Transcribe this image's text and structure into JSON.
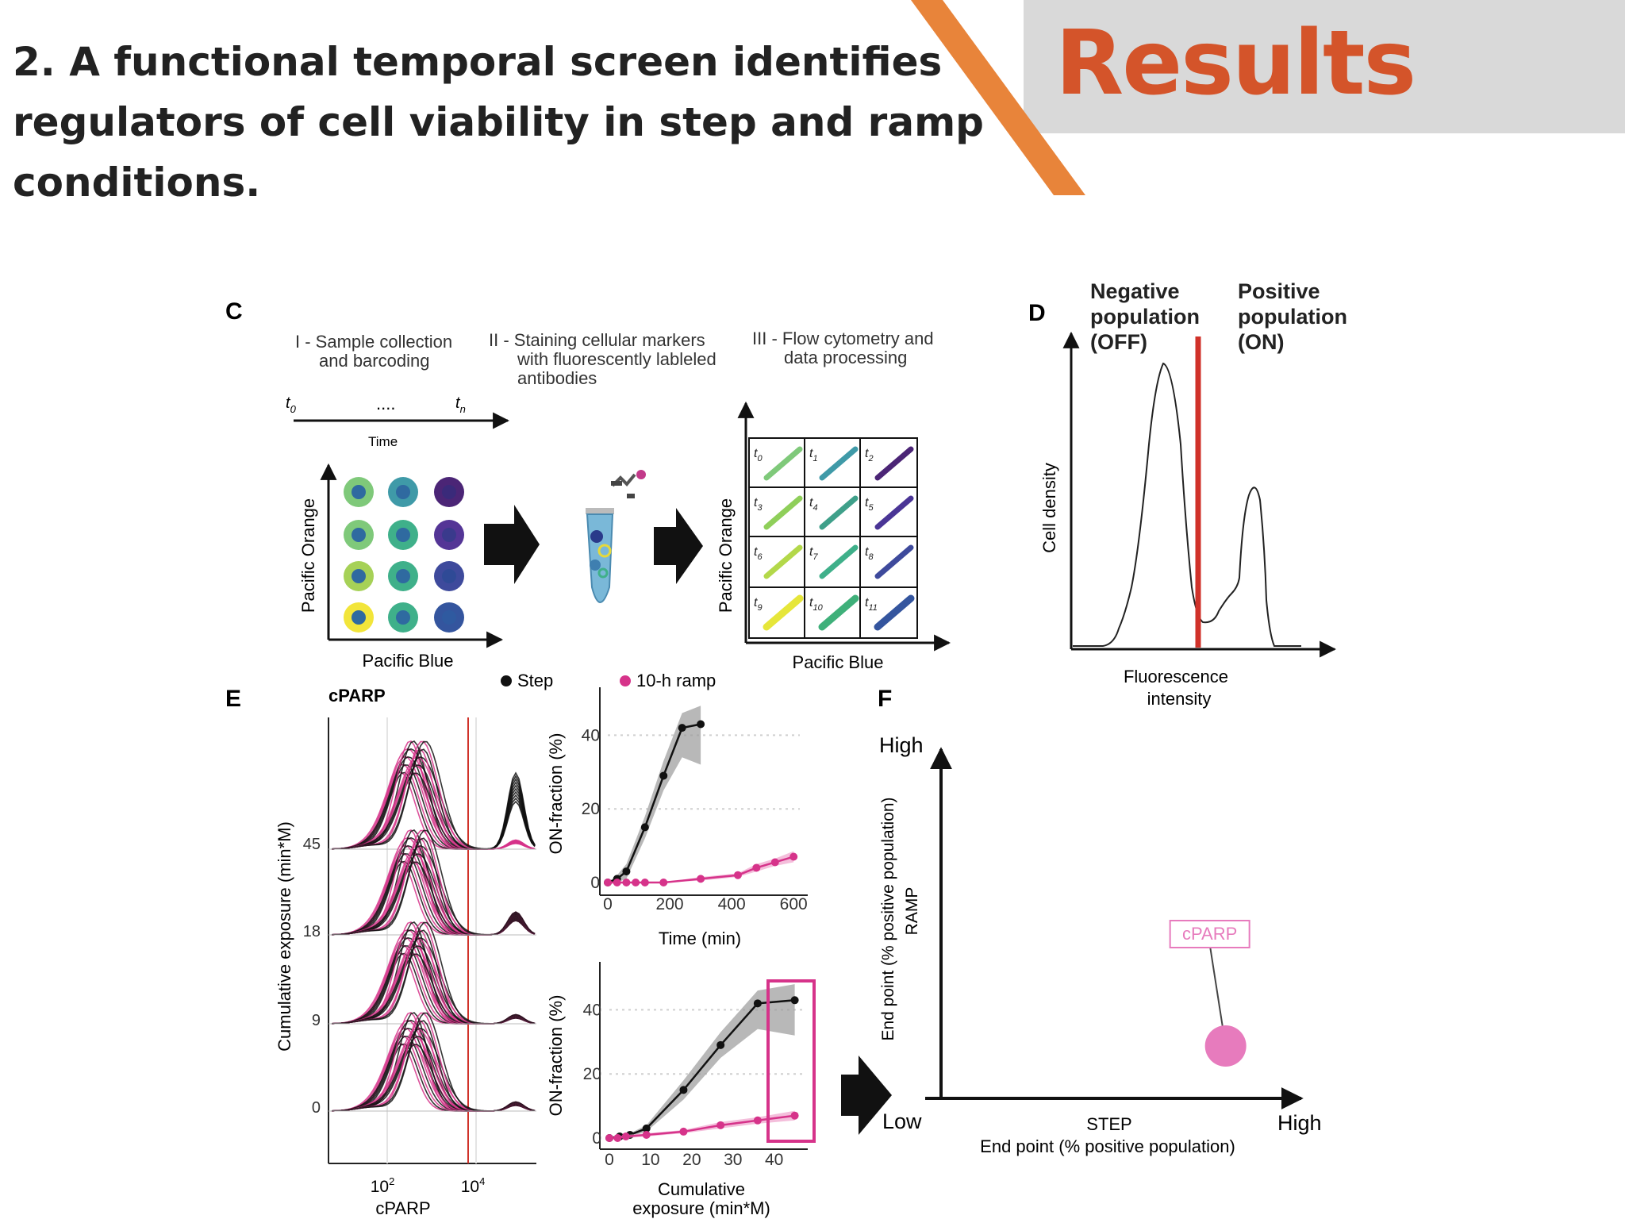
{
  "header": {
    "title": "2. A functional temporal screen identifies regulators of cell viability in step and ramp conditions.",
    "section": "Results",
    "accent_color": "#d4542a",
    "stripe_color": "#e8843a"
  },
  "figure": {
    "panel_c": {
      "label": "C",
      "step1": [
        "I - Sample collection",
        "and barcoding"
      ],
      "step2": [
        "II - Staining cellular markers",
        "with fluorescently lableled",
        "antibodies"
      ],
      "step3": [
        "III - Flow cytometry and",
        "data processing"
      ],
      "time_start": "t",
      "time_start_sub": "0",
      "time_dots": "....",
      "time_end": "t",
      "time_end_sub": "n",
      "time_label": "Time",
      "y_axis": "Pacific Orange",
      "x_axis": "Pacific Blue",
      "grid_labels": [
        "t0",
        "t1",
        "t2",
        "t3",
        "t4",
        "t5",
        "t6",
        "t7",
        "t8",
        "t9",
        "t10",
        "t11"
      ]
    },
    "panel_d": {
      "label": "D",
      "negative": [
        "Negative",
        "population",
        "(OFF)"
      ],
      "positive": [
        "Positive",
        "population",
        "(ON)"
      ],
      "y_axis": "Cell density",
      "x_axis": [
        "Fluorescence",
        "intensity"
      ],
      "threshold_color": "#d0322a"
    },
    "panel_e": {
      "label": "E",
      "marker": "cPARP",
      "legend_step": "Step",
      "legend_ramp": "10-h ramp",
      "step_color": "#111111",
      "ramp_color": "#d6338a",
      "ridge_y_axis": "Cumulative exposure (min*M)",
      "ridge_levels": [
        "45",
        "18",
        "9",
        "0"
      ],
      "ridge_x_ticks": [
        "10",
        "10"
      ],
      "ridge_x_exps": [
        "2",
        "4"
      ],
      "ridge_x_axis": "cPARP",
      "top_ylabel": "ON-fraction (%)",
      "top_xlabel": "Time (min)",
      "top_xticks": [
        "0",
        "200",
        "400",
        "600"
      ],
      "bottom_ylabel": "ON-fraction (%)",
      "bottom_xlabel": [
        "Cumulative",
        "exposure (min*M)"
      ],
      "bottom_xticks": [
        "0",
        "10",
        "20",
        "30",
        "40"
      ],
      "yticks": [
        "0",
        "20",
        "40"
      ]
    },
    "panel_f": {
      "label": "F",
      "y_high": "High",
      "y_low": "Low",
      "x_high": "High",
      "y_axis": [
        "End point (% positive population)",
        "RAMP"
      ],
      "x_axis": [
        "STEP",
        "End point (% positive population)"
      ],
      "point_label": "cPARP",
      "point_color": "#e77bbd"
    }
  },
  "chart_data": [
    {
      "type": "line",
      "panel": "E-top",
      "xlabel": "Time (min)",
      "ylabel": "ON-fraction (%)",
      "xlim": [
        0,
        620
      ],
      "ylim": [
        0,
        50
      ],
      "series": [
        {
          "name": "Step",
          "x": [
            0,
            30,
            60,
            120,
            180,
            240,
            300
          ],
          "y": [
            0,
            1,
            3,
            15,
            29,
            42,
            43
          ],
          "band_lo": [
            0,
            0,
            1,
            12,
            25,
            34,
            32
          ],
          "band_hi": [
            0,
            2,
            5,
            18,
            33,
            46,
            48
          ]
        },
        {
          "name": "10-h ramp",
          "x": [
            0,
            30,
            60,
            90,
            120,
            180,
            300,
            420,
            480,
            540,
            600
          ],
          "y": [
            0,
            0,
            0,
            0,
            0,
            0,
            1,
            2,
            4,
            5.5,
            7
          ],
          "band_lo": [
            0,
            0,
            0,
            0,
            0,
            0,
            0.5,
            1.5,
            3,
            4.5,
            5.5
          ],
          "band_hi": [
            0,
            0,
            0,
            0,
            0,
            0,
            1.5,
            2.5,
            5,
            6.5,
            8.5
          ]
        }
      ]
    },
    {
      "type": "line",
      "panel": "E-bottom",
      "xlabel": "Cumulative exposure (min*M)",
      "ylabel": "ON-fraction (%)",
      "xlim": [
        0,
        47
      ],
      "ylim": [
        0,
        50
      ],
      "series": [
        {
          "name": "Step",
          "x": [
            0,
            2.5,
            5,
            9,
            18,
            27,
            36,
            45
          ],
          "y": [
            0,
            0.5,
            1,
            3,
            15,
            29,
            42,
            43
          ],
          "band_lo": [
            0,
            0,
            0.5,
            2,
            12,
            25,
            34,
            32
          ],
          "band_hi": [
            0,
            1,
            1.5,
            4,
            18,
            33,
            46,
            48
          ]
        },
        {
          "name": "10-h ramp",
          "x": [
            0,
            2,
            4,
            9,
            18,
            27,
            36,
            45
          ],
          "y": [
            0,
            0,
            0.5,
            1,
            2,
            4,
            5.5,
            7
          ],
          "band_lo": [
            0,
            0,
            0,
            0.5,
            1.5,
            3,
            4.5,
            5.5
          ],
          "band_hi": [
            0,
            0.5,
            1,
            1.5,
            2.5,
            5,
            6.5,
            8.5
          ]
        }
      ]
    },
    {
      "type": "scatter",
      "panel": "F",
      "xlabel": "STEP End point (% positive population)",
      "ylabel": "RAMP End point (% positive population)",
      "xlim": [
        0,
        1
      ],
      "ylim": [
        0,
        1
      ],
      "series": [
        {
          "name": "cPARP",
          "x": [
            0.79
          ],
          "y": [
            0.15
          ]
        }
      ]
    }
  ]
}
